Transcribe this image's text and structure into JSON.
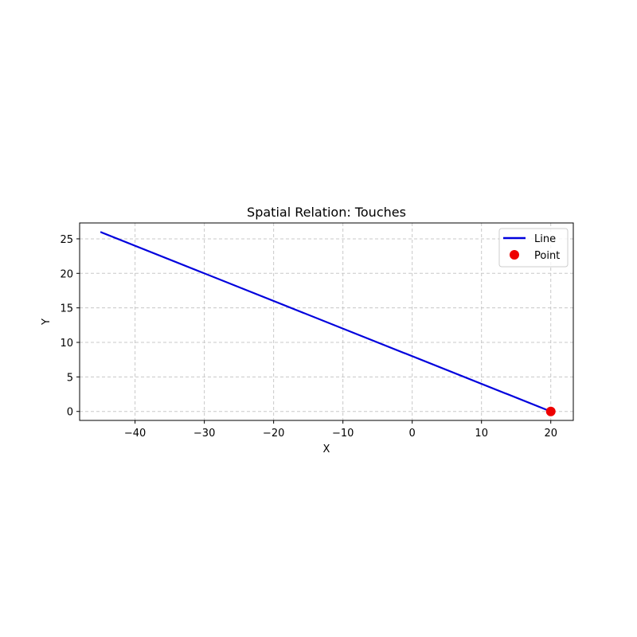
{
  "chart_data": {
    "type": "line",
    "title": "Spatial Relation: Touches",
    "xlabel": "X",
    "ylabel": "Y",
    "xlim": [
      -48,
      23.25
    ],
    "ylim": [
      -1.3,
      27.3
    ],
    "xticks": [
      -40,
      -30,
      -20,
      -10,
      0,
      10,
      20
    ],
    "yticks": [
      0,
      5,
      10,
      15,
      20,
      25
    ],
    "grid": true,
    "legend_position": "top-right",
    "series": [
      {
        "name": "Line",
        "kind": "line",
        "color": "#0000dd",
        "x": [
          -45,
          20
        ],
        "y": [
          26,
          0
        ]
      },
      {
        "name": "Point",
        "kind": "scatter",
        "color": "#ee0000",
        "x": [
          20
        ],
        "y": [
          0
        ]
      }
    ]
  }
}
